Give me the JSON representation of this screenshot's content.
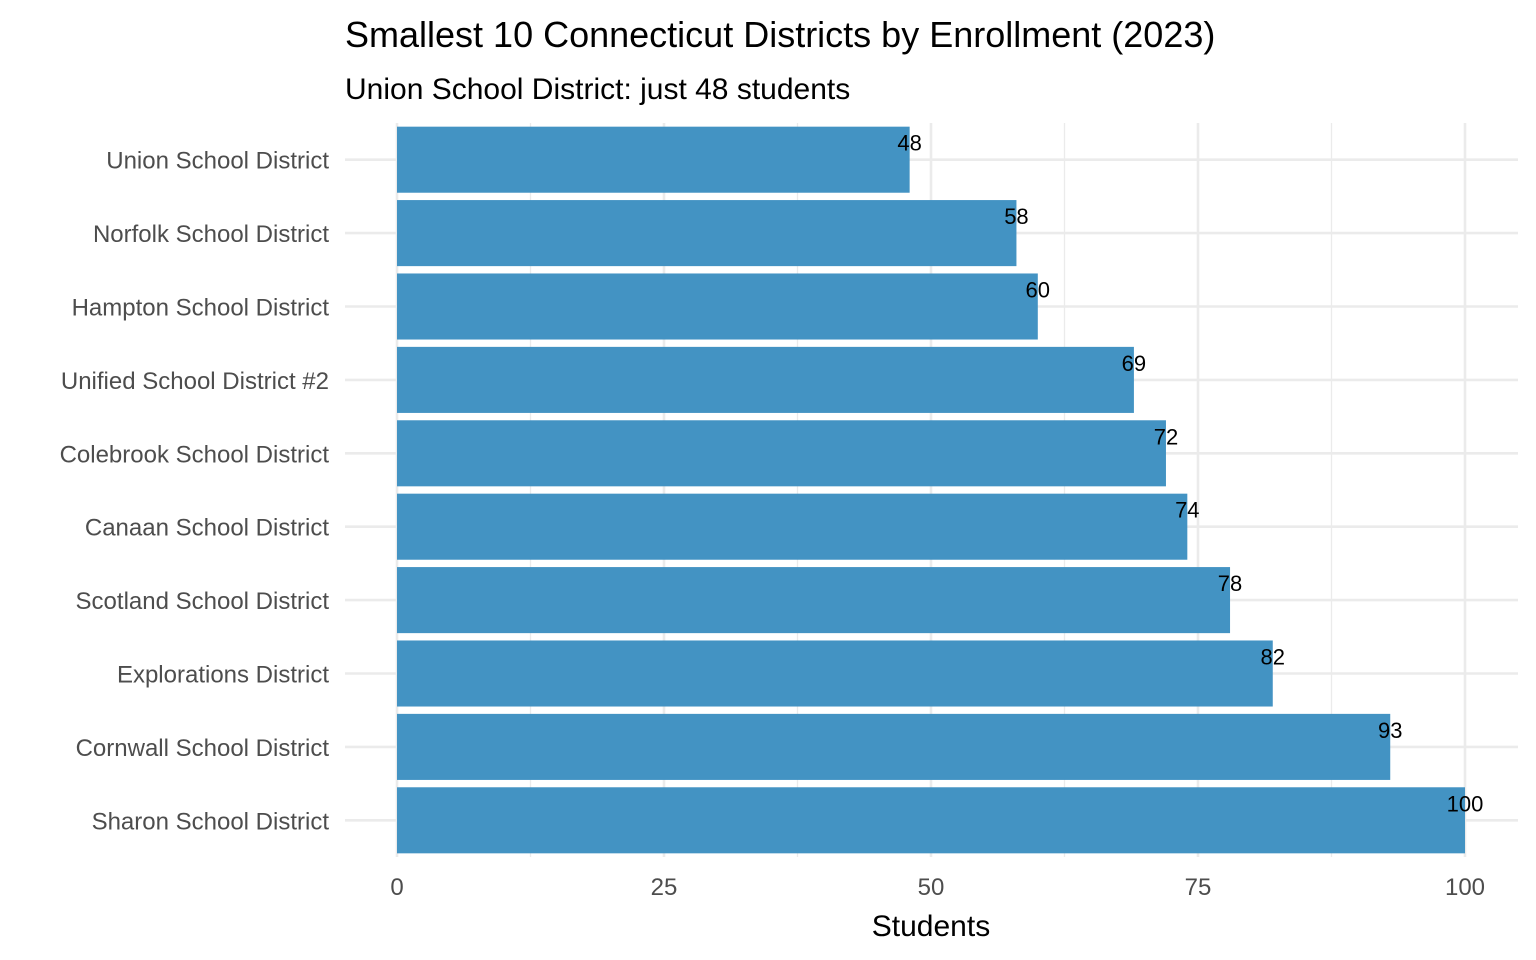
{
  "chart_data": {
    "type": "bar",
    "orientation": "horizontal",
    "title": "Smallest 10 Connecticut Districts by Enrollment (2023)",
    "subtitle": "Union School District: just 48 students",
    "xlabel": "Students",
    "ylabel": "",
    "categories": [
      "Union School District",
      "Norfolk School District",
      "Hampton School District",
      "Unified School District #2",
      "Colebrook School District",
      "Canaan School District",
      "Scotland School District",
      "Explorations District",
      "Cornwall School District",
      "Sharon School District"
    ],
    "values": [
      48,
      58,
      60,
      69,
      72,
      74,
      78,
      82,
      93,
      100
    ],
    "xlim": [
      0,
      100
    ],
    "xticks": [
      "0",
      "25",
      "50",
      "75",
      "100"
    ],
    "xtick_values": [
      0,
      25,
      50,
      75,
      100
    ],
    "grid": true,
    "bar_color": "#4393C3",
    "data_labels": true
  }
}
